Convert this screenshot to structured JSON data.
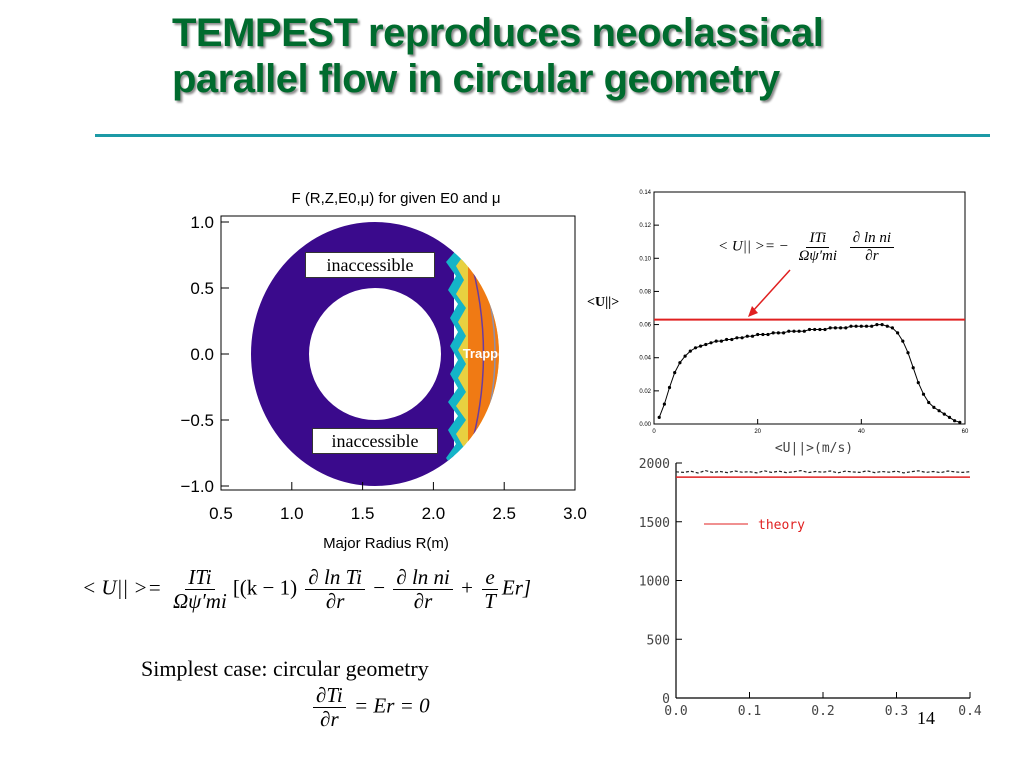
{
  "slide": {
    "title_line1": "TEMPEST reproduces neoclassical",
    "title_line2": "parallel flow in circular geometry",
    "page_number": "14",
    "caption": "Simplest case: circular geometry"
  },
  "colors": {
    "title": "#006b2e",
    "rule": "#1d9aa6",
    "inaccessible": "#3a0a8c",
    "trapped": "#f07a14",
    "theory_line": "#e02020"
  },
  "equations": {
    "main_lhs": "< U|| >=",
    "main_num": "ITi",
    "main_den": "Ωψ′mi",
    "main_bracket_open": "[(k − 1)",
    "main_d_num1": "∂ ln Ti",
    "main_d_den1": "∂r",
    "main_minus": "−",
    "main_d_num2": "∂ ln ni",
    "main_d_den2": "∂r",
    "main_plus": "+",
    "main_e_num": "e",
    "main_e_den": "T",
    "main_er": "Er]",
    "simple_num": "∂Ti",
    "simple_den": "∂r",
    "simple_rhs": "= Er = 0",
    "inset_lhs": "< U|| >= −",
    "inset_num1": "ITi",
    "inset_den1": "Ωψ′mi",
    "inset_num2": "∂ ln ni",
    "inset_den2": "∂r"
  },
  "chart_data": [
    {
      "type": "heatmap",
      "title": "F (R,Z,E0,μ) for given E0 and μ",
      "xlabel": "Major Radius R(m)",
      "ylabel": "",
      "x_ticks": [
        "0.5",
        "1.0",
        "1.5",
        "2.0",
        "2.5",
        "3.0"
      ],
      "y_ticks": [
        "1.0",
        "0.5",
        "0.0",
        "−0.5",
        "−1.0"
      ],
      "xlim": [
        0.5,
        3.0
      ],
      "ylim": [
        -1.1,
        1.1
      ],
      "annotations": [
        "inaccessible",
        "inaccessible",
        "Trapped"
      ]
    },
    {
      "type": "line",
      "title": "",
      "xlabel": "",
      "ylabel": "",
      "annotation": "<U||>",
      "x_ticks": [
        "0",
        "20",
        "40",
        "60"
      ],
      "y_ticks": [
        "0.00",
        "0.02",
        "0.04",
        "0.06",
        "0.08",
        "0.10",
        "0.12",
        "0.14"
      ],
      "xlim": [
        0,
        60
      ],
      "ylim": [
        0,
        0.14
      ],
      "theory_value": 0.063,
      "series": [
        {
          "x": [
            1,
            2,
            3,
            4,
            5,
            6,
            7,
            8,
            9,
            10,
            11,
            12,
            13,
            14,
            15,
            16,
            17,
            18,
            19,
            20,
            21,
            22,
            23,
            24,
            25,
            26,
            27,
            28,
            29,
            30,
            31,
            32,
            33,
            34,
            35,
            36,
            37,
            38,
            39,
            40,
            41,
            42,
            43,
            44,
            45,
            46,
            47,
            48,
            49,
            50,
            51,
            52,
            53,
            54,
            55,
            56,
            57,
            58,
            59
          ],
          "y": [
            0.004,
            0.012,
            0.022,
            0.031,
            0.037,
            0.041,
            0.044,
            0.046,
            0.047,
            0.048,
            0.049,
            0.05,
            0.05,
            0.051,
            0.051,
            0.052,
            0.052,
            0.053,
            0.053,
            0.054,
            0.054,
            0.054,
            0.055,
            0.055,
            0.055,
            0.056,
            0.056,
            0.056,
            0.056,
            0.057,
            0.057,
            0.057,
            0.057,
            0.058,
            0.058,
            0.058,
            0.058,
            0.059,
            0.059,
            0.059,
            0.059,
            0.059,
            0.06,
            0.06,
            0.059,
            0.058,
            0.055,
            0.05,
            0.043,
            0.034,
            0.025,
            0.018,
            0.013,
            0.01,
            0.008,
            0.006,
            0.004,
            0.002,
            0.001
          ]
        }
      ]
    },
    {
      "type": "line",
      "title": "<U||>(m/s)",
      "xlabel": "",
      "ylabel": "",
      "x_ticks": [
        "0.0",
        "0.1",
        "0.2",
        "0.3",
        "0.4"
      ],
      "y_ticks": [
        "0",
        "500",
        "1000",
        "1500",
        "2000"
      ],
      "xlim": [
        0,
        0.4
      ],
      "ylim": [
        0,
        2000
      ],
      "legend": "theory",
      "theory_value": 1880,
      "series": [
        {
          "x": [
            0.0,
            0.01,
            0.02,
            0.03,
            0.04,
            0.05,
            0.06,
            0.07,
            0.08,
            0.09,
            0.1,
            0.11,
            0.12,
            0.13,
            0.14,
            0.15,
            0.16,
            0.17,
            0.18,
            0.19,
            0.2,
            0.21,
            0.22,
            0.23,
            0.24,
            0.25,
            0.26,
            0.27,
            0.28,
            0.29,
            0.3,
            0.31,
            0.32,
            0.33,
            0.34,
            0.35,
            0.36,
            0.37,
            0.38,
            0.39,
            0.4
          ],
          "y": [
            1925,
            1920,
            1930,
            1915,
            1935,
            1920,
            1928,
            1918,
            1932,
            1922,
            1926,
            1916,
            1934,
            1920,
            1930,
            1918,
            1925,
            1935,
            1918,
            1928,
            1922,
            1932,
            1916,
            1930,
            1924,
            1920,
            1934,
            1918,
            1928,
            1922,
            1930,
            1916,
            1926,
            1934,
            1920,
            1928,
            1918,
            1932,
            1924,
            1920,
            1926
          ]
        }
      ]
    }
  ]
}
